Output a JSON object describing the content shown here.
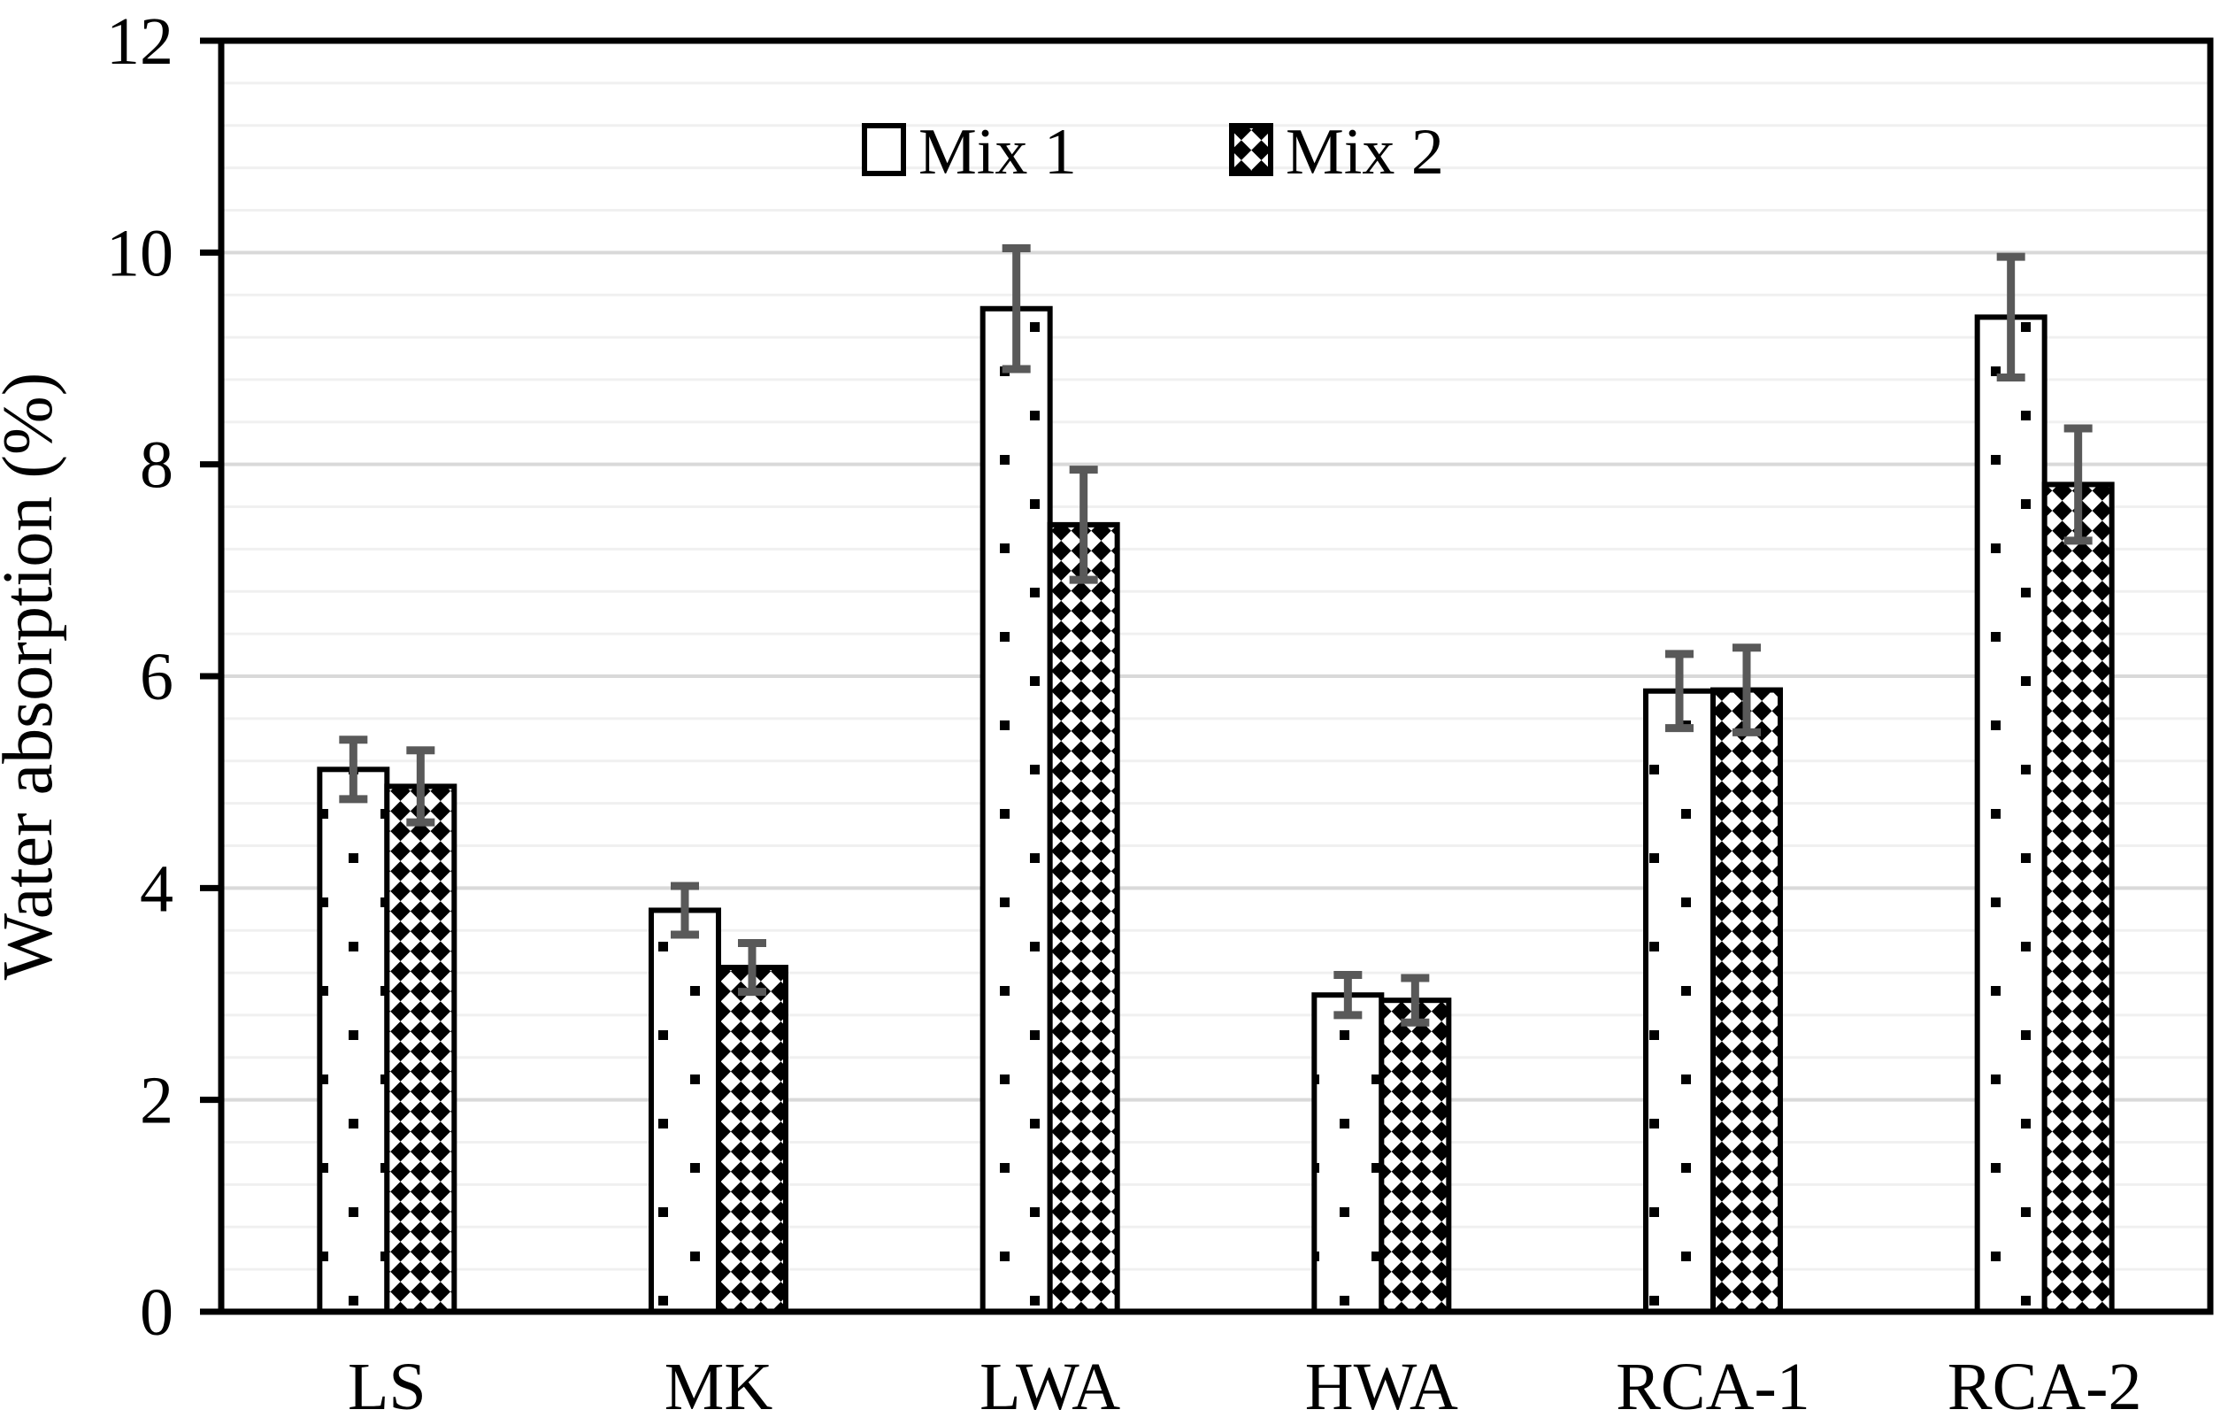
{
  "chart_data": {
    "type": "bar",
    "title": "",
    "xlabel": "",
    "ylabel": "Water absorption (%)",
    "categories": [
      "LS",
      "MK",
      "LWA",
      "HWA",
      "RCA-1",
      "RCA-2"
    ],
    "series": [
      {
        "name": "Mix 1",
        "pattern": "sparse-dots",
        "values": [
          5.12,
          3.79,
          9.47,
          2.99,
          5.86,
          9.39
        ],
        "errors": [
          0.28,
          0.23,
          0.57,
          0.19,
          0.35,
          0.57
        ]
      },
      {
        "name": "Mix 2",
        "pattern": "diagonal-checker",
        "values": [
          4.96,
          3.25,
          7.43,
          2.94,
          5.87,
          7.81
        ],
        "errors": [
          0.34,
          0.23,
          0.52,
          0.21,
          0.4,
          0.53
        ]
      }
    ],
    "ylim": [
      0,
      12
    ],
    "yticks": [
      0,
      2,
      4,
      6,
      8,
      10,
      12
    ],
    "minor_unit": 0.4,
    "major_unit": 2,
    "grid": "horizontal",
    "legend_position": "top-center",
    "colors": {
      "background": "#ffffff",
      "bar_fill": "#ffffff",
      "bar_stroke": "#000000",
      "error_bar": "#595959",
      "major_grid": "#d9d9d9",
      "minor_grid": "#f0f0f0",
      "axis": "#000000",
      "text": "#000000"
    }
  }
}
